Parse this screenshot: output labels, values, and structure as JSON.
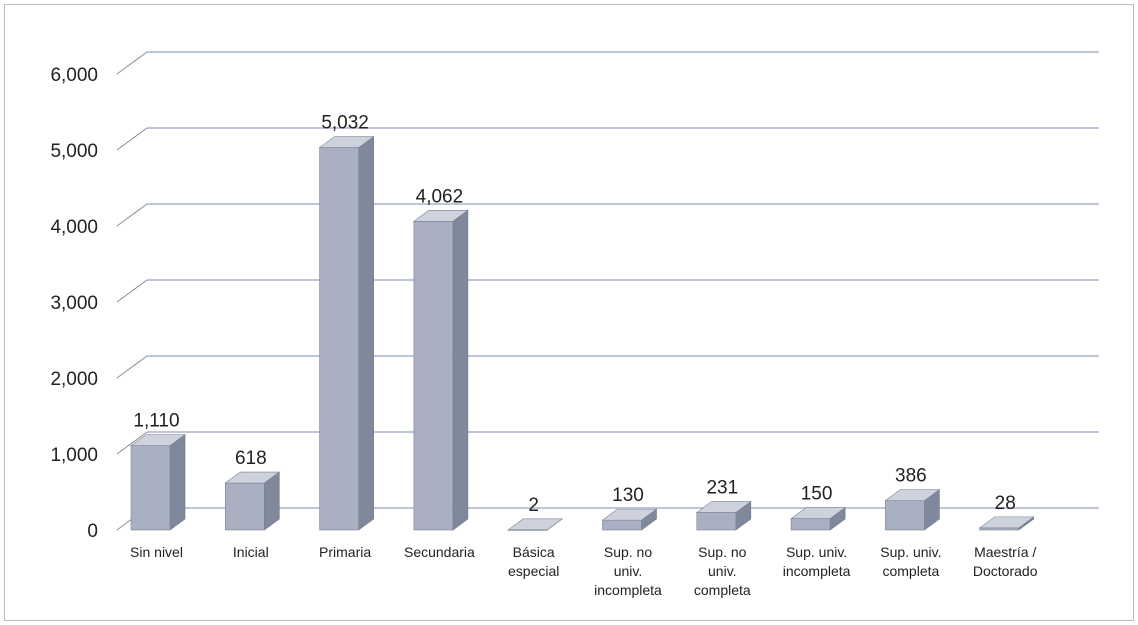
{
  "chart_data": {
    "type": "bar",
    "style": "3d-column",
    "title": "",
    "xlabel": "",
    "ylabel": "",
    "ylim": [
      0,
      6000
    ],
    "yticks": [
      "0",
      "1,000",
      "2,000",
      "3,000",
      "4,000",
      "5,000",
      "6,000"
    ],
    "grid": true,
    "legend": "none",
    "categories": [
      "Sin nivel",
      "Inicial",
      "Primaria",
      "Secundaria",
      "Básica\nespecial",
      "Sup. no\nuniv.\nincompleta",
      "Sup. no\nuniv.\ncompleta",
      "Sup. univ.\nincompleta",
      "Sup. univ.\ncompleta",
      "Maestría /\nDoctorado"
    ],
    "values": [
      1110,
      618,
      5032,
      4062,
      2,
      130,
      231,
      150,
      386,
      28
    ],
    "data_labels": [
      "1,110",
      "618",
      "5,032",
      "4,062",
      "2",
      "130",
      "231",
      "150",
      "386",
      "28"
    ],
    "colors": {
      "bar_front": "#a9b0c1",
      "bar_side": "#80889b",
      "bar_top": "#cdd2dd",
      "gridline": "#a9b4d0",
      "text": "#222222"
    }
  }
}
